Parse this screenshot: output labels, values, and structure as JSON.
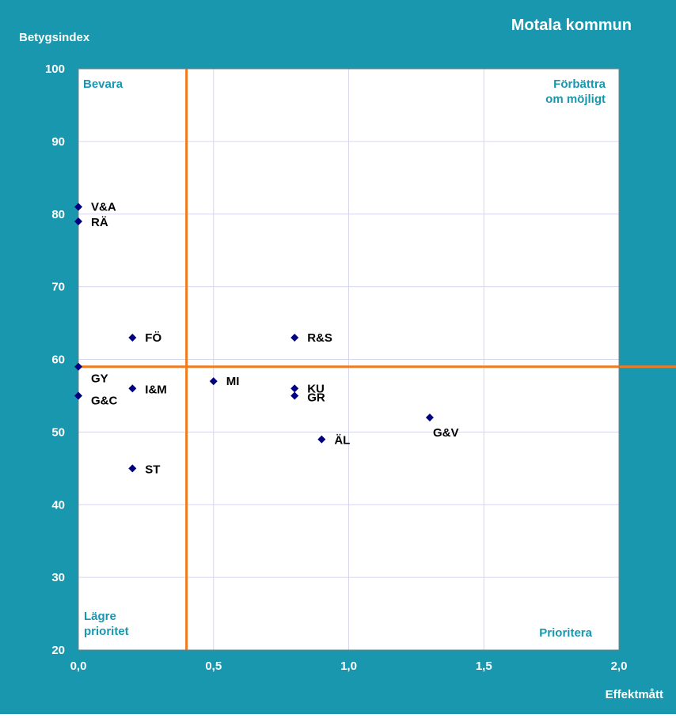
{
  "chart_data": {
    "type": "scatter",
    "title": "Motala kommun",
    "xlabel": "Effektmått",
    "ylabel": "Betygsindex",
    "xlim": [
      0,
      2
    ],
    "ylim": [
      20,
      100
    ],
    "x_ticks": [
      "0,0",
      "0,5",
      "1,0",
      "1,5",
      "2,0"
    ],
    "y_ticks": [
      "20",
      "30",
      "40",
      "50",
      "60",
      "70",
      "80",
      "90",
      "100"
    ],
    "grid": true,
    "reference_lines": {
      "x": 0.4,
      "y": 59
    },
    "quadrant_labels": {
      "top_left": [
        "Bevara"
      ],
      "top_right": [
        "Förbättra",
        "om möjligt"
      ],
      "bottom_left": [
        "Lägre",
        "prioritet"
      ],
      "bottom_right": [
        "Prioritera"
      ]
    },
    "points": [
      {
        "label": "V&A",
        "x": 0.0,
        "y": 81
      },
      {
        "label": "RÄ",
        "x": 0.0,
        "y": 79
      },
      {
        "label": "GY",
        "x": 0.0,
        "y": 59
      },
      {
        "label": "G&C",
        "x": 0.0,
        "y": 55
      },
      {
        "label": "FÖ",
        "x": 0.2,
        "y": 63
      },
      {
        "label": "I&M",
        "x": 0.2,
        "y": 56
      },
      {
        "label": "ST",
        "x": 0.2,
        "y": 45
      },
      {
        "label": "MI",
        "x": 0.5,
        "y": 57
      },
      {
        "label": "R&S",
        "x": 0.8,
        "y": 63
      },
      {
        "label": "KU",
        "x": 0.8,
        "y": 56
      },
      {
        "label": "GR",
        "x": 0.8,
        "y": 55
      },
      {
        "label": "ÄL",
        "x": 0.9,
        "y": 49
      },
      {
        "label": "G&V",
        "x": 1.3,
        "y": 52
      }
    ],
    "colors": {
      "background": "#1897ae",
      "plot_area": "#ffffff",
      "grid": "#d6d6ee",
      "reference_line": "#f37a1f",
      "marker": "#000080",
      "quadrant_text": "#1897ae",
      "axis_text": "#ffffff",
      "point_label": "#000000"
    }
  }
}
